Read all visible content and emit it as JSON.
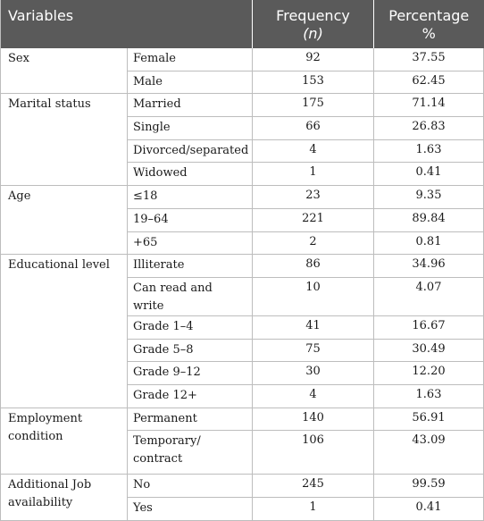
{
  "header": {
    "variables": "Variables",
    "frequency_line1": "Frequency",
    "frequency_n": "(n)",
    "percentage_line1": "Percentage",
    "percentage_line2": "%"
  },
  "groups": [
    {
      "label": "Sex",
      "rows": [
        {
          "category": "Female",
          "frequency": "92",
          "percentage": "37.55"
        },
        {
          "category": "Male",
          "frequency": "153",
          "percentage": "62.45"
        }
      ]
    },
    {
      "label": "Marital status",
      "rows": [
        {
          "category": "Married",
          "frequency": "175",
          "percentage": "71.14"
        },
        {
          "category": "Single",
          "frequency": "66",
          "percentage": "26.83"
        },
        {
          "category": "Divorced/separated",
          "frequency": "4",
          "percentage": "1.63"
        },
        {
          "category": "Widowed",
          "frequency": "1",
          "percentage": "0.41"
        }
      ]
    },
    {
      "label": "Age",
      "rows": [
        {
          "category": "≤18",
          "frequency": "23",
          "percentage": "9.35"
        },
        {
          "category": "19–64",
          "frequency": "221",
          "percentage": "89.84"
        },
        {
          "category": "+65",
          "frequency": "2",
          "percentage": "0.81"
        }
      ]
    },
    {
      "label": "Educational level",
      "rows": [
        {
          "category": "Illiterate",
          "frequency": "86",
          "percentage": "34.96"
        },
        {
          "category": "Can read and write",
          "frequency": "10",
          "percentage": "4.07"
        },
        {
          "category": "Grade 1–4",
          "frequency": "41",
          "percentage": "16.67"
        },
        {
          "category": "Grade 5–8",
          "frequency": "75",
          "percentage": "30.49"
        },
        {
          "category": "Grade 9–12",
          "frequency": "30",
          "percentage": "12.20"
        },
        {
          "category": "Grade 12+",
          "frequency": "4",
          "percentage": "1.63"
        }
      ]
    },
    {
      "label": "Employment condition",
      "rows": [
        {
          "category": "Permanent",
          "frequency": "140",
          "percentage": "56.91"
        },
        {
          "category": "Temporary/ contract",
          "frequency": "106",
          "percentage": "43.09"
        }
      ]
    },
    {
      "label": "Additional Job availability",
      "rows": [
        {
          "category": "No",
          "frequency": "245",
          "percentage": "99.59"
        },
        {
          "category": "Yes",
          "frequency": "1",
          "percentage": "0.41"
        }
      ]
    }
  ]
}
